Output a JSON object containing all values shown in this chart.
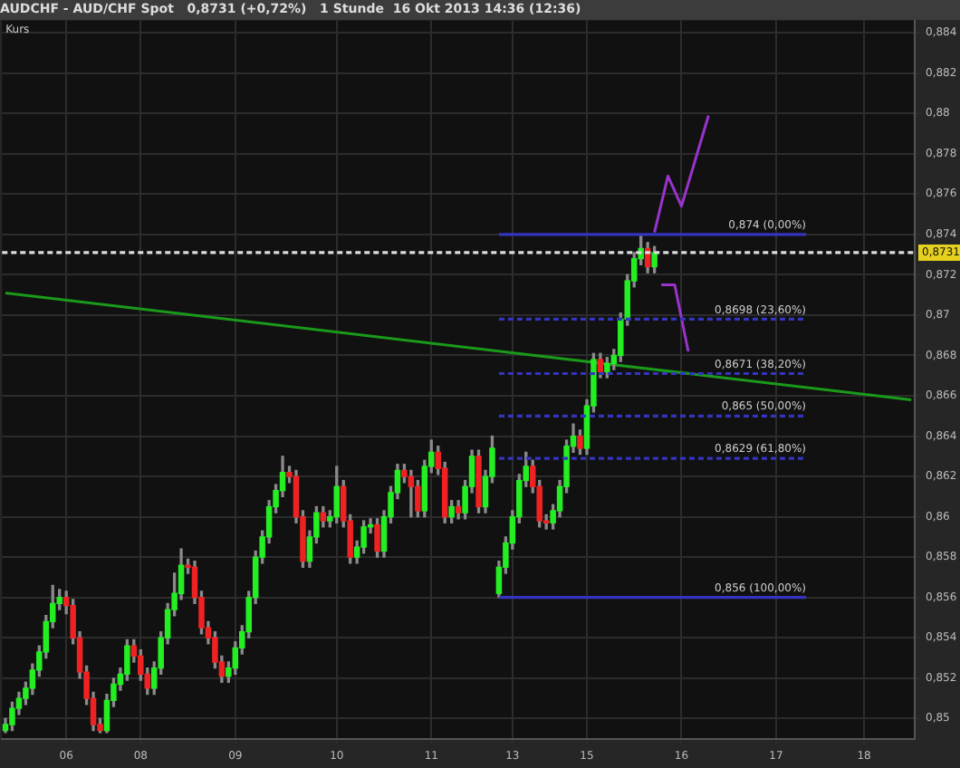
{
  "chart_data": {
    "type": "candlestick",
    "title": "AUDCHF - AUD/CHF Spot   0,8731 (+0,72%)   1 Stunde  16 Okt 2013 14:36 (12:36)",
    "annotations": [
      "Kurs"
    ],
    "categories": [
      null,
      null,
      null,
      null,
      null,
      null,
      null,
      null,
      null,
      "06",
      null,
      null,
      null,
      null,
      null,
      null,
      null,
      null,
      null,
      null,
      "08",
      null,
      null,
      null,
      null,
      null,
      null,
      null,
      null,
      null,
      null,
      null,
      null,
      null,
      "09",
      null,
      null,
      null,
      null,
      null,
      null,
      null,
      null,
      null,
      null,
      null,
      null,
      null,
      null,
      "10",
      null,
      null,
      null,
      null,
      null,
      null,
      null,
      null,
      null,
      null,
      null,
      null,
      null,
      "11",
      null,
      null,
      null,
      null,
      null,
      null,
      null,
      null,
      null,
      null,
      null,
      "13",
      null,
      null,
      null,
      null,
      null,
      null,
      null,
      null,
      null,
      null,
      "15",
      null,
      null,
      null,
      null,
      null,
      null,
      null,
      null,
      null,
      null,
      null,
      null,
      null,
      "16",
      null,
      null,
      null,
      null,
      null,
      null,
      null,
      null,
      null,
      null,
      null,
      null,
      null,
      "17",
      null,
      null,
      null,
      null,
      null,
      null,
      null,
      null,
      null,
      null,
      null,
      null,
      "18",
      null,
      null,
      null,
      null,
      null,
      null,
      null
    ],
    "ohlc": [
      [
        0.8494,
        0.85,
        0.8493,
        0.8497
      ],
      [
        0.8497,
        0.8508,
        0.8494,
        0.8505
      ],
      [
        0.8505,
        0.8513,
        0.8502,
        0.851
      ],
      [
        0.851,
        0.8518,
        0.8507,
        0.8515
      ],
      [
        0.8515,
        0.8527,
        0.8512,
        0.8524
      ],
      [
        0.8524,
        0.8536,
        0.8521,
        0.8533
      ],
      [
        0.8533,
        0.8551,
        0.853,
        0.8548
      ],
      [
        0.8548,
        0.8566,
        0.8545,
        0.8557
      ],
      [
        0.8557,
        0.8564,
        0.8554,
        0.856
      ],
      [
        0.856,
        0.8563,
        0.8552,
        0.8556
      ],
      [
        0.8556,
        0.8559,
        0.8537,
        0.854
      ],
      [
        0.854,
        0.8543,
        0.852,
        0.8523
      ],
      [
        0.8523,
        0.8526,
        0.8507,
        0.851
      ],
      [
        0.851,
        0.8513,
        0.8494,
        0.8497
      ],
      [
        0.8497,
        0.85,
        0.8493,
        0.8494
      ],
      [
        0.8494,
        0.8512,
        0.8493,
        0.8509
      ],
      [
        0.8509,
        0.852,
        0.8506,
        0.8517
      ],
      [
        0.8517,
        0.8525,
        0.8514,
        0.8522
      ],
      [
        0.8522,
        0.8539,
        0.8519,
        0.8536
      ],
      [
        0.8536,
        0.8539,
        0.8528,
        0.8531
      ],
      [
        0.8531,
        0.8534,
        0.8519,
        0.8522
      ],
      [
        0.8522,
        0.8525,
        0.8512,
        0.8515
      ],
      [
        0.8515,
        0.8528,
        0.8512,
        0.8525
      ],
      [
        0.8525,
        0.8543,
        0.8522,
        0.854
      ],
      [
        0.854,
        0.8557,
        0.8537,
        0.8554
      ],
      [
        0.8554,
        0.8572,
        0.8551,
        0.8562
      ],
      [
        0.8562,
        0.8584,
        0.8559,
        0.8576
      ],
      [
        0.8576,
        0.8579,
        0.8572,
        0.8575
      ],
      [
        0.8575,
        0.8578,
        0.8557,
        0.856
      ],
      [
        0.856,
        0.8563,
        0.8542,
        0.8545
      ],
      [
        0.8545,
        0.8548,
        0.8537,
        0.854
      ],
      [
        0.854,
        0.8543,
        0.8525,
        0.8528
      ],
      [
        0.8528,
        0.8531,
        0.8518,
        0.8521
      ],
      [
        0.8521,
        0.8528,
        0.8518,
        0.8525
      ],
      [
        0.8525,
        0.8538,
        0.8522,
        0.8535
      ],
      [
        0.8535,
        0.8546,
        0.8532,
        0.8543
      ],
      [
        0.8543,
        0.8563,
        0.854,
        0.856
      ],
      [
        0.856,
        0.8583,
        0.8557,
        0.858
      ],
      [
        0.858,
        0.8593,
        0.8577,
        0.859
      ],
      [
        0.859,
        0.8608,
        0.8587,
        0.8605
      ],
      [
        0.8605,
        0.8616,
        0.8602,
        0.8613
      ],
      [
        0.8613,
        0.863,
        0.861,
        0.8622
      ],
      [
        0.8622,
        0.8625,
        0.8617,
        0.862
      ],
      [
        0.862,
        0.8623,
        0.8597,
        0.86
      ],
      [
        0.86,
        0.8603,
        0.8575,
        0.8578
      ],
      [
        0.8578,
        0.8593,
        0.8575,
        0.859
      ],
      [
        0.859,
        0.8605,
        0.8587,
        0.8602
      ],
      [
        0.8602,
        0.8605,
        0.8595,
        0.8598
      ],
      [
        0.8598,
        0.8603,
        0.8595,
        0.86
      ],
      [
        0.86,
        0.8625,
        0.8597,
        0.8615
      ],
      [
        0.8615,
        0.8618,
        0.8595,
        0.8598
      ],
      [
        0.8598,
        0.8601,
        0.8577,
        0.858
      ],
      [
        0.858,
        0.8588,
        0.8577,
        0.8585
      ],
      [
        0.8585,
        0.8598,
        0.8582,
        0.8595
      ],
      [
        0.8595,
        0.8599,
        0.8592,
        0.8596
      ],
      [
        0.8596,
        0.8599,
        0.858,
        0.8583
      ],
      [
        0.8583,
        0.8603,
        0.858,
        0.86
      ],
      [
        0.86,
        0.8615,
        0.8597,
        0.8612
      ],
      [
        0.8612,
        0.8626,
        0.8609,
        0.8623
      ],
      [
        0.8623,
        0.8626,
        0.8617,
        0.862
      ],
      [
        0.862,
        0.8623,
        0.86,
        0.8615
      ],
      [
        0.8615,
        0.8618,
        0.86,
        0.8603
      ],
      [
        0.8603,
        0.8628,
        0.86,
        0.8625
      ],
      [
        0.8625,
        0.8638,
        0.8622,
        0.8632
      ],
      [
        0.8632,
        0.8635,
        0.8621,
        0.8624
      ],
      [
        0.8624,
        0.8627,
        0.8597,
        0.86
      ],
      [
        0.86,
        0.8608,
        0.8597,
        0.8605
      ],
      [
        0.8605,
        0.8608,
        0.8599,
        0.8602
      ],
      [
        0.8602,
        0.8618,
        0.8599,
        0.8615
      ],
      [
        0.8615,
        0.8633,
        0.8612,
        0.863
      ],
      [
        0.863,
        0.8633,
        0.8602,
        0.8605
      ],
      [
        0.8605,
        0.8623,
        0.8602,
        0.862
      ],
      [
        0.862,
        0.864,
        0.8617,
        0.8634
      ],
      [
        0.8562,
        0.8578,
        0.856,
        0.8575
      ],
      [
        0.8575,
        0.859,
        0.8572,
        0.8587
      ],
      [
        0.8587,
        0.8603,
        0.8584,
        0.86
      ],
      [
        0.86,
        0.8621,
        0.8597,
        0.8618
      ],
      [
        0.8618,
        0.8632,
        0.8615,
        0.8625
      ],
      [
        0.8625,
        0.8628,
        0.8612,
        0.8615
      ],
      [
        0.8615,
        0.8618,
        0.8595,
        0.8598
      ],
      [
        0.8598,
        0.8601,
        0.8594,
        0.8597
      ],
      [
        0.8597,
        0.8606,
        0.8594,
        0.8603
      ],
      [
        0.8603,
        0.8618,
        0.86,
        0.8615
      ],
      [
        0.8615,
        0.8638,
        0.8612,
        0.8635
      ],
      [
        0.8635,
        0.8646,
        0.8632,
        0.864
      ],
      [
        0.864,
        0.8643,
        0.8631,
        0.8634
      ],
      [
        0.8634,
        0.8658,
        0.8631,
        0.8655
      ],
      [
        0.8655,
        0.8681,
        0.8652,
        0.8678
      ],
      [
        0.8678,
        0.8681,
        0.8669,
        0.8672
      ],
      [
        0.8672,
        0.8679,
        0.8669,
        0.8676
      ],
      [
        0.8676,
        0.8683,
        0.8673,
        0.868
      ],
      [
        0.868,
        0.8701,
        0.8677,
        0.8698
      ],
      [
        0.8698,
        0.872,
        0.8695,
        0.8717
      ],
      [
        0.8717,
        0.8731,
        0.8714,
        0.8728
      ],
      [
        0.8728,
        0.874,
        0.8725,
        0.8733
      ],
      [
        0.8733,
        0.8736,
        0.8721,
        0.8724
      ],
      [
        0.8724,
        0.8734,
        0.8721,
        0.8731
      ],
      null,
      null,
      null,
      null,
      null,
      null,
      null,
      null,
      null,
      null,
      null,
      null,
      null,
      null,
      null,
      null,
      null,
      null,
      null,
      null,
      null,
      null,
      null,
      null,
      null,
      null,
      null,
      null,
      null,
      null,
      null,
      null,
      null,
      null,
      null,
      null,
      null,
      null
    ],
    "colors": [
      "#22ee22",
      "#22ee22",
      "#22ee22",
      "#22ee22",
      "#22ee22",
      "#22ee22",
      "#22ee22",
      "#22ee22",
      "#22ee22",
      "#ee2222",
      "#ee2222",
      "#ee2222",
      "#ee2222",
      "#ee2222",
      "#ee2222",
      "#22ee22",
      "#22ee22",
      "#22ee22",
      "#22ee22",
      "#ee2222",
      "#ee2222",
      "#ee2222",
      "#22ee22",
      "#22ee22",
      "#22ee22",
      "#22ee22",
      "#22ee22",
      "#ee2222",
      "#ee2222",
      "#ee2222",
      "#ee2222",
      "#ee2222",
      "#ee2222",
      "#22ee22",
      "#22ee22",
      "#22ee22",
      "#22ee22",
      "#22ee22",
      "#22ee22",
      "#22ee22",
      "#22ee22",
      "#22ee22",
      "#ee2222",
      "#ee2222",
      "#ee2222",
      "#22ee22",
      "#22ee22",
      "#ee2222",
      "#22ee22",
      "#22ee22",
      "#ee2222",
      "#ee2222",
      "#22ee22",
      "#22ee22",
      "#22ee22",
      "#ee2222",
      "#22ee22",
      "#22ee22",
      "#22ee22",
      "#ee2222",
      "#ee2222",
      "#ee2222",
      "#22ee22",
      "#22ee22",
      "#ee2222",
      "#ee2222",
      "#22ee22",
      "#ee2222",
      "#22ee22",
      "#22ee22",
      "#ee2222",
      "#22ee22",
      "#22ee22",
      "#22ee22",
      "#22ee22",
      "#22ee22",
      "#22ee22",
      "#22ee22",
      "#ee2222",
      "#ee2222",
      "#ee2222",
      "#22ee22",
      "#22ee22",
      "#22ee22",
      "#22ee22",
      "#ee2222",
      "#22ee22",
      "#22ee22",
      "#ee2222",
      "#22ee22",
      "#22ee22",
      "#22ee22",
      "#22ee22",
      "#22ee22",
      "#22ee22",
      "#ee2222",
      "#22ee22",
      null,
      null,
      null,
      null,
      null,
      null,
      null,
      null,
      null,
      null,
      null,
      null,
      null,
      null,
      null,
      null,
      null,
      null,
      null,
      null,
      null,
      null,
      null,
      null,
      null,
      null,
      null,
      null,
      null,
      null,
      null,
      null,
      null,
      null,
      null,
      null,
      null,
      null
    ],
    "series": [
      {
        "type": "line",
        "color": "#1a9a1a",
        "values": [
          0.8711,
          null,
          null,
          null,
          null,
          null,
          null,
          null,
          null,
          null,
          null,
          null,
          null,
          null,
          null,
          null,
          null,
          null,
          null,
          null,
          null,
          null,
          null,
          null,
          null,
          null,
          null,
          null,
          null,
          null,
          null,
          null,
          null,
          null,
          null,
          null,
          null,
          null,
          null,
          null,
          null,
          null,
          null,
          null,
          null,
          null,
          null,
          null,
          null,
          null,
          null,
          null,
          null,
          null,
          null,
          null,
          null,
          null,
          null,
          null,
          null,
          null,
          null,
          null,
          null,
          null,
          null,
          null,
          null,
          null,
          null,
          null,
          null,
          null,
          null,
          null,
          null,
          null,
          null,
          null,
          null,
          null,
          null,
          null,
          null,
          null,
          null,
          null,
          null,
          null,
          null,
          null,
          null,
          null,
          null,
          null,
          null,
          null,
          null,
          null,
          null,
          null,
          null,
          null,
          null,
          null,
          null,
          null,
          null,
          null,
          null,
          null,
          null,
          null,
          null,
          null,
          null,
          null,
          null,
          null,
          null,
          null,
          null,
          null,
          null,
          null,
          null,
          null,
          null,
          null,
          null,
          null,
          null,
          null,
          0.8658
        ]
      },
      {
        "type": "line",
        "color": "#9933cc",
        "values": [
          null,
          null,
          null,
          null,
          null,
          null,
          null,
          null,
          null,
          null,
          null,
          null,
          null,
          null,
          null,
          null,
          null,
          null,
          null,
          null,
          null,
          null,
          null,
          null,
          null,
          null,
          null,
          null,
          null,
          null,
          null,
          null,
          null,
          null,
          null,
          null,
          null,
          null,
          null,
          null,
          null,
          null,
          null,
          null,
          null,
          null,
          null,
          null,
          null,
          null,
          null,
          null,
          null,
          null,
          null,
          null,
          null,
          null,
          null,
          null,
          null,
          null,
          null,
          null,
          null,
          null,
          null,
          null,
          null,
          null,
          null,
          null,
          null,
          null,
          null,
          null,
          null,
          null,
          null,
          null,
          null,
          null,
          null,
          null,
          null,
          null,
          null,
          null,
          null,
          null,
          null,
          null,
          null,
          null,
          null,
          null,
          0.8741,
          null,
          0.8769,
          null,
          0.8754,
          null,
          null,
          null,
          0.8799,
          null,
          null,
          null,
          null,
          null,
          null,
          null,
          null,
          null,
          null,
          null,
          null,
          null,
          null,
          null,
          null,
          null,
          null,
          null,
          null,
          null,
          null,
          null,
          null,
          null,
          null,
          null,
          null,
          null,
          null
        ]
      },
      {
        "type": "line",
        "color": "#9933cc",
        "values": [
          null,
          null,
          null,
          null,
          null,
          null,
          null,
          null,
          null,
          null,
          null,
          null,
          null,
          null,
          null,
          null,
          null,
          null,
          null,
          null,
          null,
          null,
          null,
          null,
          null,
          null,
          null,
          null,
          null,
          null,
          null,
          null,
          null,
          null,
          null,
          null,
          null,
          null,
          null,
          null,
          null,
          null,
          null,
          null,
          null,
          null,
          null,
          null,
          null,
          null,
          null,
          null,
          null,
          null,
          null,
          null,
          null,
          null,
          null,
          null,
          null,
          null,
          null,
          null,
          null,
          null,
          null,
          null,
          null,
          null,
          null,
          null,
          null,
          null,
          null,
          null,
          null,
          null,
          null,
          null,
          null,
          null,
          null,
          null,
          null,
          null,
          null,
          null,
          null,
          null,
          null,
          null,
          null,
          null,
          null,
          null,
          null,
          0.8715,
          null,
          0.8715,
          null,
          0.8682,
          null,
          null,
          null,
          null,
          null,
          null,
          null,
          null,
          null,
          null,
          null,
          null,
          null,
          null,
          null,
          null,
          null,
          null,
          null,
          null,
          null,
          null,
          null,
          null,
          null,
          null,
          null,
          null,
          null,
          null,
          null,
          null,
          null
        ]
      }
    ],
    "ref_lines": [
      {
        "axis": "y",
        "value": 0.874,
        "label": "0,874 (0,00%)",
        "color": "#3434c0",
        "line_style": "solid"
      },
      {
        "axis": "y",
        "value": 0.8698,
        "label": "0,8698 (23,60%)",
        "color": "#3434c0",
        "line_style": "dashed"
      },
      {
        "axis": "y",
        "value": 0.8671,
        "label": "0,8671 (38,20%)",
        "color": "#3434c0",
        "line_style": "dashed"
      },
      {
        "axis": "y",
        "value": 0.865,
        "label": "0,865 (50,00%)",
        "color": "#3434c0",
        "line_style": "dashed"
      },
      {
        "axis": "y",
        "value": 0.8629,
        "label": "0,8629 (61,80%)",
        "color": "#3434c0",
        "line_style": "dashed"
      },
      {
        "axis": "y",
        "value": 0.856,
        "label": "0,856 (100,00%)",
        "color": "#3434c0",
        "line_style": "solid"
      },
      {
        "axis": "y",
        "value": 0.8731,
        "label": "0,8731",
        "color": "#dddddd",
        "line_style": "dashed"
      }
    ],
    "ylim": [
      0.849,
      0.8846
    ],
    "yticks": [
      {
        "value": 0.85,
        "label": "0,85"
      },
      {
        "value": 0.852,
        "label": "0,852"
      },
      {
        "value": 0.854,
        "label": "0,854"
      },
      {
        "value": 0.856,
        "label": "0,856"
      },
      {
        "value": 0.858,
        "label": "0,858"
      },
      {
        "value": 0.86,
        "label": "0,86"
      },
      {
        "value": 0.862,
        "label": "0,862"
      },
      {
        "value": 0.864,
        "label": "0,864"
      },
      {
        "value": 0.866,
        "label": "0,866"
      },
      {
        "value": 0.868,
        "label": "0,868"
      },
      {
        "value": 0.87,
        "label": "0,87"
      },
      {
        "value": 0.872,
        "label": "0,872"
      },
      {
        "value": 0.874,
        "label": "0,874"
      },
      {
        "value": 0.876,
        "label": "0,876"
      },
      {
        "value": 0.878,
        "label": "0,878"
      },
      {
        "value": 0.88,
        "label": "0,88"
      },
      {
        "value": 0.882,
        "label": "0,882"
      },
      {
        "value": 0.884,
        "label": "0,884"
      }
    ],
    "grid": true
  }
}
